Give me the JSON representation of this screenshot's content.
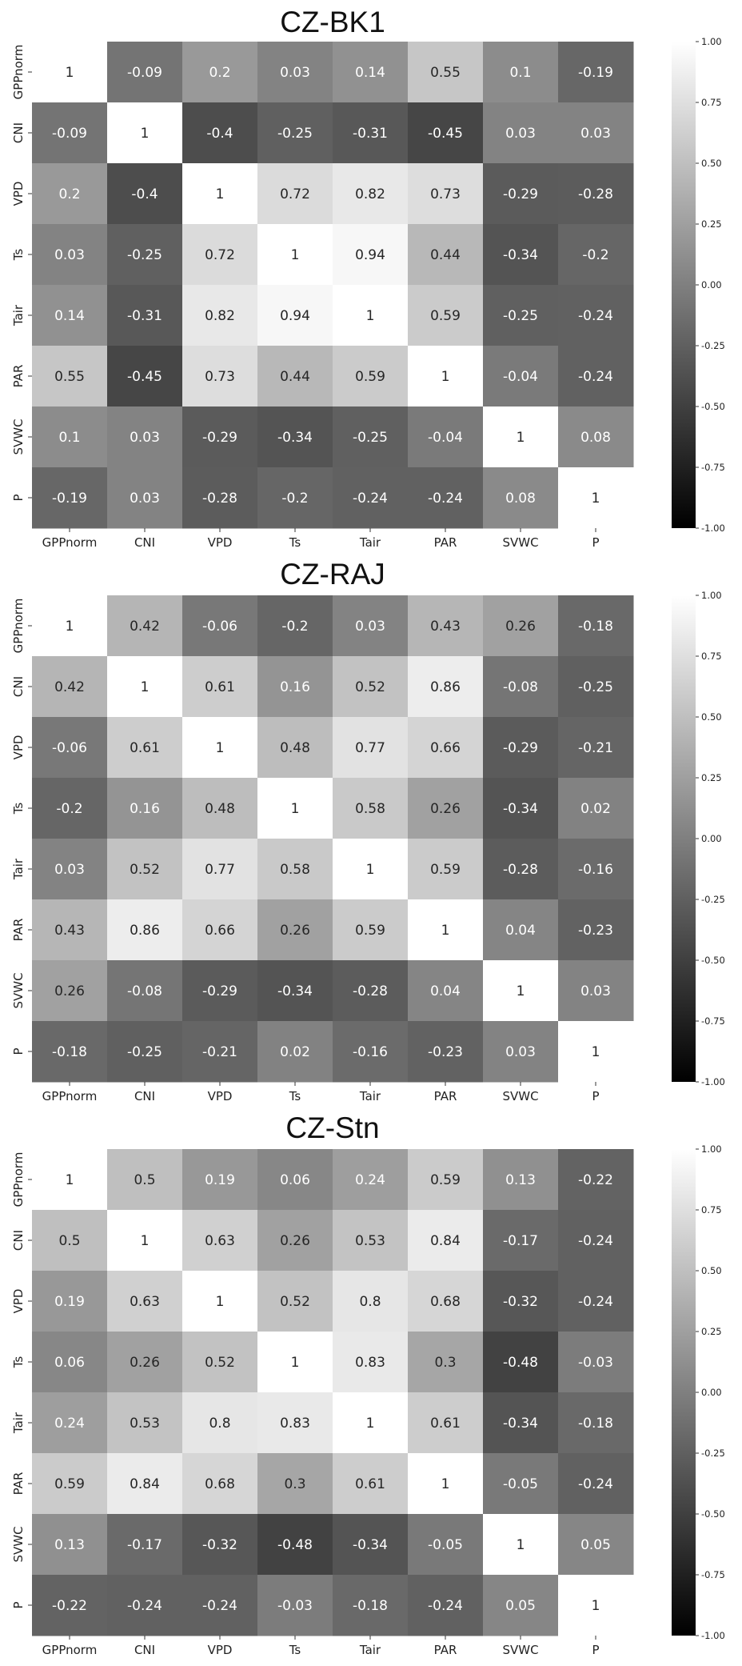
{
  "chart_data": [
    {
      "type": "heatmap",
      "title": "CZ-BK1",
      "x_labels": [
        "GPPnorm",
        "CNI",
        "VPD",
        "Ts",
        "Tair",
        "PAR",
        "SVWC",
        "P"
      ],
      "y_labels": [
        "GPPnorm",
        "CNI",
        "VPD",
        "Ts",
        "Tair",
        "PAR",
        "SVWC",
        "P"
      ],
      "values": [
        [
          "1",
          "-0.09",
          "0.2",
          "0.03",
          "0.14",
          "0.55",
          "0.1",
          "-0.19"
        ],
        [
          "-0.09",
          "1",
          "-0.4",
          "-0.25",
          "-0.31",
          "-0.45",
          "0.03",
          "0.03"
        ],
        [
          "0.2",
          "-0.4",
          "1",
          "0.72",
          "0.82",
          "0.73",
          "-0.29",
          "-0.28"
        ],
        [
          "0.03",
          "-0.25",
          "0.72",
          "1",
          "0.94",
          "0.44",
          "-0.34",
          "-0.2"
        ],
        [
          "0.14",
          "-0.31",
          "0.82",
          "0.94",
          "1",
          "0.59",
          "-0.25",
          "-0.24"
        ],
        [
          "0.55",
          "-0.45",
          "0.73",
          "0.44",
          "0.59",
          "1",
          "-0.04",
          "-0.24"
        ],
        [
          "0.1",
          "0.03",
          "-0.29",
          "-0.34",
          "-0.25",
          "-0.04",
          "1",
          "0.08"
        ],
        [
          "-0.19",
          "0.03",
          "-0.28",
          "-0.2",
          "-0.24",
          "-0.24",
          "0.08",
          "1"
        ]
      ],
      "colorbar": {
        "range": [
          -1,
          1
        ],
        "ticks": [
          "1.00",
          "0.75",
          "0.50",
          "0.25",
          "0.00",
          "-0.25",
          "-0.50",
          "-0.75",
          "-1.00"
        ]
      }
    },
    {
      "type": "heatmap",
      "title": "CZ-RAJ",
      "x_labels": [
        "GPPnorm",
        "CNI",
        "VPD",
        "Ts",
        "Tair",
        "PAR",
        "SVWC",
        "P"
      ],
      "y_labels": [
        "GPPnorm",
        "CNI",
        "VPD",
        "Ts",
        "Tair",
        "PAR",
        "SVWC",
        "P"
      ],
      "values": [
        [
          "1",
          "0.42",
          "-0.06",
          "-0.2",
          "0.03",
          "0.43",
          "0.26",
          "-0.18"
        ],
        [
          "0.42",
          "1",
          "0.61",
          "0.16",
          "0.52",
          "0.86",
          "-0.08",
          "-0.25"
        ],
        [
          "-0.06",
          "0.61",
          "1",
          "0.48",
          "0.77",
          "0.66",
          "-0.29",
          "-0.21"
        ],
        [
          "-0.2",
          "0.16",
          "0.48",
          "1",
          "0.58",
          "0.26",
          "-0.34",
          "0.02"
        ],
        [
          "0.03",
          "0.52",
          "0.77",
          "0.58",
          "1",
          "0.59",
          "-0.28",
          "-0.16"
        ],
        [
          "0.43",
          "0.86",
          "0.66",
          "0.26",
          "0.59",
          "1",
          "0.04",
          "-0.23"
        ],
        [
          "0.26",
          "-0.08",
          "-0.29",
          "-0.34",
          "-0.28",
          "0.04",
          "1",
          "0.03"
        ],
        [
          "-0.18",
          "-0.25",
          "-0.21",
          "0.02",
          "-0.16",
          "-0.23",
          "0.03",
          "1"
        ]
      ],
      "colorbar": {
        "range": [
          -1,
          1
        ],
        "ticks": [
          "1.00",
          "0.75",
          "0.50",
          "0.25",
          "0.00",
          "-0.25",
          "-0.50",
          "-0.75",
          "-1.00"
        ]
      }
    },
    {
      "type": "heatmap",
      "title": "CZ-Stn",
      "x_labels": [
        "GPPnorm",
        "CNI",
        "VPD",
        "Ts",
        "Tair",
        "PAR",
        "SVWC",
        "P"
      ],
      "y_labels": [
        "GPPnorm",
        "CNI",
        "VPD",
        "Ts",
        "Tair",
        "PAR",
        "SVWC",
        "P"
      ],
      "values": [
        [
          "1",
          "0.5",
          "0.19",
          "0.06",
          "0.24",
          "0.59",
          "0.13",
          "-0.22"
        ],
        [
          "0.5",
          "1",
          "0.63",
          "0.26",
          "0.53",
          "0.84",
          "-0.17",
          "-0.24"
        ],
        [
          "0.19",
          "0.63",
          "1",
          "0.52",
          "0.8",
          "0.68",
          "-0.32",
          "-0.24"
        ],
        [
          "0.06",
          "0.26",
          "0.52",
          "1",
          "0.83",
          "0.3",
          "-0.48",
          "-0.03"
        ],
        [
          "0.24",
          "0.53",
          "0.8",
          "0.83",
          "1",
          "0.61",
          "-0.34",
          "-0.18"
        ],
        [
          "0.59",
          "0.84",
          "0.68",
          "0.3",
          "0.61",
          "1",
          "-0.05",
          "-0.24"
        ],
        [
          "0.13",
          "-0.17",
          "-0.32",
          "-0.48",
          "-0.34",
          "-0.05",
          "1",
          "0.05"
        ],
        [
          "-0.22",
          "-0.24",
          "-0.24",
          "-0.03",
          "-0.18",
          "-0.24",
          "0.05",
          "1"
        ]
      ],
      "colorbar": {
        "range": [
          -1,
          1
        ],
        "ticks": [
          "1.00",
          "0.75",
          "0.50",
          "0.25",
          "0.00",
          "-0.25",
          "-0.50",
          "-0.75",
          "-1.00"
        ]
      }
    }
  ],
  "colors": {
    "low": "#000000",
    "high": "#ffffff",
    "background": "#ffffff"
  }
}
